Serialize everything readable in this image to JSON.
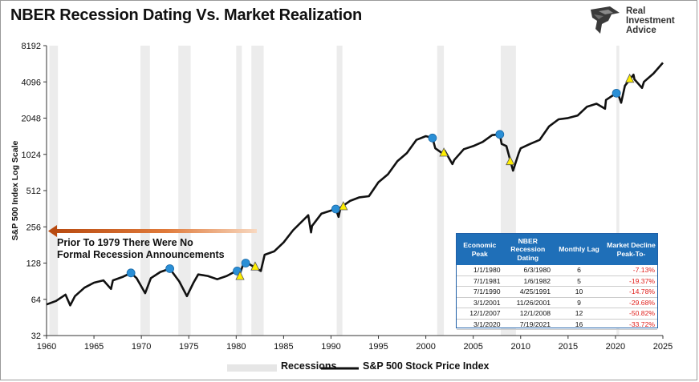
{
  "header": {
    "title": "NBER Recession Dating Vs. Market Realization"
  },
  "logo": {
    "line1": "Real",
    "line2": "Investment",
    "line3": "Advice"
  },
  "annotation": {
    "line1": "Prior To 1979 There Were No",
    "line2": "Formal Recession Announcements"
  },
  "table": {
    "headers": [
      "Economic Peak",
      "NBER Recession Dating",
      "Monthly Lag",
      "Market Decline Peak-To-"
    ],
    "rows": [
      {
        "peak": "1/1/1980",
        "dating": "6/3/1980",
        "lag": "6",
        "decline": "-7.13%"
      },
      {
        "peak": "7/1/1981",
        "dating": "1/6/1982",
        "lag": "5",
        "decline": "-19.37%"
      },
      {
        "peak": "7/1/1990",
        "dating": "4/25/1991",
        "lag": "10",
        "decline": "-14.78%"
      },
      {
        "peak": "3/1/2001",
        "dating": "11/26/2001",
        "lag": "9",
        "decline": "-29.68%"
      },
      {
        "peak": "12/1/2007",
        "dating": "12/1/2008",
        "lag": "12",
        "decline": "-50.82%"
      },
      {
        "peak": "3/1/2020",
        "dating": "7/19/2021",
        "lag": "16",
        "decline": "-33.72%"
      }
    ]
  },
  "legend": {
    "recessions": "Recessions",
    "sp500": "S&P 500 Stock Price Index"
  },
  "colors": {
    "line": "#111111",
    "recession": "#ececec",
    "peak_marker": "#2a8fd6",
    "dating_marker": "#ffee00",
    "arrow": "#c8581a",
    "table_header": "#1f6fb8",
    "decline": "#e0201c"
  },
  "chart_data": {
    "type": "line",
    "title": "NBER Recession Dating Vs. Market Realization",
    "xlabel": "",
    "ylabel": "S&P 500 Index Log Scale",
    "yscale": "log2",
    "xlim": [
      1960,
      2025
    ],
    "ylim": [
      32,
      8192
    ],
    "xticks": [
      1960,
      1965,
      1970,
      1975,
      1980,
      1985,
      1990,
      1995,
      2000,
      2005,
      2010,
      2015,
      2020,
      2025
    ],
    "yticks": [
      32,
      64,
      128,
      256,
      512,
      1024,
      2048,
      4096,
      8192
    ],
    "recessions": [
      [
        1960.3,
        1961.2
      ],
      [
        1969.9,
        1970.9
      ],
      [
        1973.9,
        1975.2
      ],
      [
        1980.0,
        1980.6
      ],
      [
        1981.6,
        1982.9
      ],
      [
        1990.6,
        1991.2
      ],
      [
        2001.2,
        2001.9
      ],
      [
        2007.9,
        2009.5
      ],
      [
        2020.1,
        2020.4
      ]
    ],
    "series": [
      {
        "name": "S&P 500 Stock Price Index",
        "x": [
          1960,
          1961,
          1962,
          1962.5,
          1963,
          1964,
          1965,
          1966,
          1966.8,
          1967,
          1968,
          1968.9,
          1969.5,
          1970.4,
          1971,
          1972,
          1973,
          1974,
          1974.8,
          1975.5,
          1976,
          1977,
          1978,
          1979,
          1980,
          1980.3,
          1980.9,
          1981.5,
          1982.6,
          1983,
          1984,
          1985,
          1986,
          1987.6,
          1987.9,
          1988,
          1989,
          1990.5,
          1990.8,
          1991,
          1992,
          1993,
          1994,
          1995,
          1996,
          1997,
          1998,
          1999,
          2000,
          2000.7,
          2001,
          2001.7,
          2002,
          2002.8,
          2003,
          2004,
          2005,
          2006,
          2007,
          2007.8,
          2008,
          2008.5,
          2009.2,
          2009.8,
          2010,
          2011,
          2012,
          2013,
          2014,
          2015,
          2016,
          2017,
          2018,
          2018.9,
          2019,
          2019.9,
          2020.2,
          2020.6,
          2021,
          2021.9,
          2022,
          2022.8,
          2023,
          2024,
          2025
        ],
        "values": [
          58,
          62,
          70,
          57,
          68,
          80,
          88,
          92,
          78,
          92,
          98,
          106,
          96,
          72,
          96,
          108,
          115,
          90,
          68,
          88,
          103,
          100,
          94,
          100,
          110,
          100,
          135,
          124,
          110,
          150,
          160,
          190,
          240,
          320,
          230,
          260,
          330,
          360,
          310,
          370,
          420,
          450,
          460,
          600,
          700,
          900,
          1050,
          1350,
          1450,
          1400,
          1150,
          1050,
          1100,
          850,
          920,
          1130,
          1200,
          1300,
          1480,
          1500,
          1250,
          1200,
          750,
          1050,
          1150,
          1250,
          1350,
          1750,
          2000,
          2050,
          2150,
          2550,
          2700,
          2450,
          2900,
          3230,
          3380,
          2750,
          3800,
          4700,
          4300,
          3650,
          4100,
          4800,
          5900
        ]
      }
    ],
    "peaks": [
      {
        "x": 1968.9,
        "y": 106
      },
      {
        "x": 1973.0,
        "y": 115
      },
      {
        "x": 1980.1,
        "y": 110
      },
      {
        "x": 1981.0,
        "y": 128
      },
      {
        "x": 1990.5,
        "y": 360
      },
      {
        "x": 2000.7,
        "y": 1400
      },
      {
        "x": 2007.8,
        "y": 1500
      },
      {
        "x": 2020.1,
        "y": 3300
      }
    ],
    "datings": [
      {
        "x": 1980.4,
        "y": 100
      },
      {
        "x": 1982.0,
        "y": 120
      },
      {
        "x": 1991.3,
        "y": 380
      },
      {
        "x": 2001.9,
        "y": 1060
      },
      {
        "x": 2008.9,
        "y": 900
      },
      {
        "x": 2021.5,
        "y": 4350
      }
    ]
  }
}
